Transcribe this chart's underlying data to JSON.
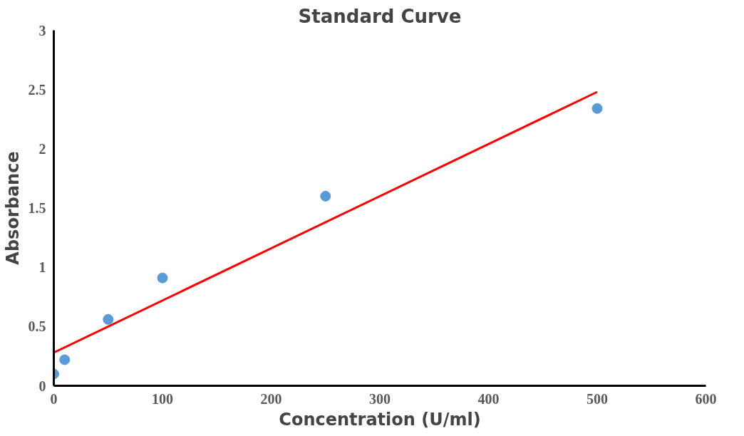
{
  "chart_data": {
    "type": "scatter",
    "title": "Standard Curve",
    "xlabel": "Concentration (U/ml)",
    "ylabel": "Absorbance",
    "x": [
      0,
      10,
      50,
      100,
      250,
      500
    ],
    "series": [
      {
        "color": "#5b9bd5",
        "marker": "circle",
        "values": [
          0.1,
          0.22,
          0.56,
          0.91,
          1.6,
          2.34
        ]
      },
      {
        "type": "line",
        "color": "#ff0000",
        "x": [
          0,
          500
        ],
        "values": [
          0.28,
          2.48
        ]
      }
    ],
    "xlim": [
      0,
      600
    ],
    "xticks": [
      0,
      100,
      200,
      300,
      400,
      500,
      600
    ],
    "ylim": [
      0,
      3
    ],
    "yticks": [
      0,
      0.5,
      1,
      1.5,
      2,
      2.5,
      3
    ],
    "grid": false
  }
}
